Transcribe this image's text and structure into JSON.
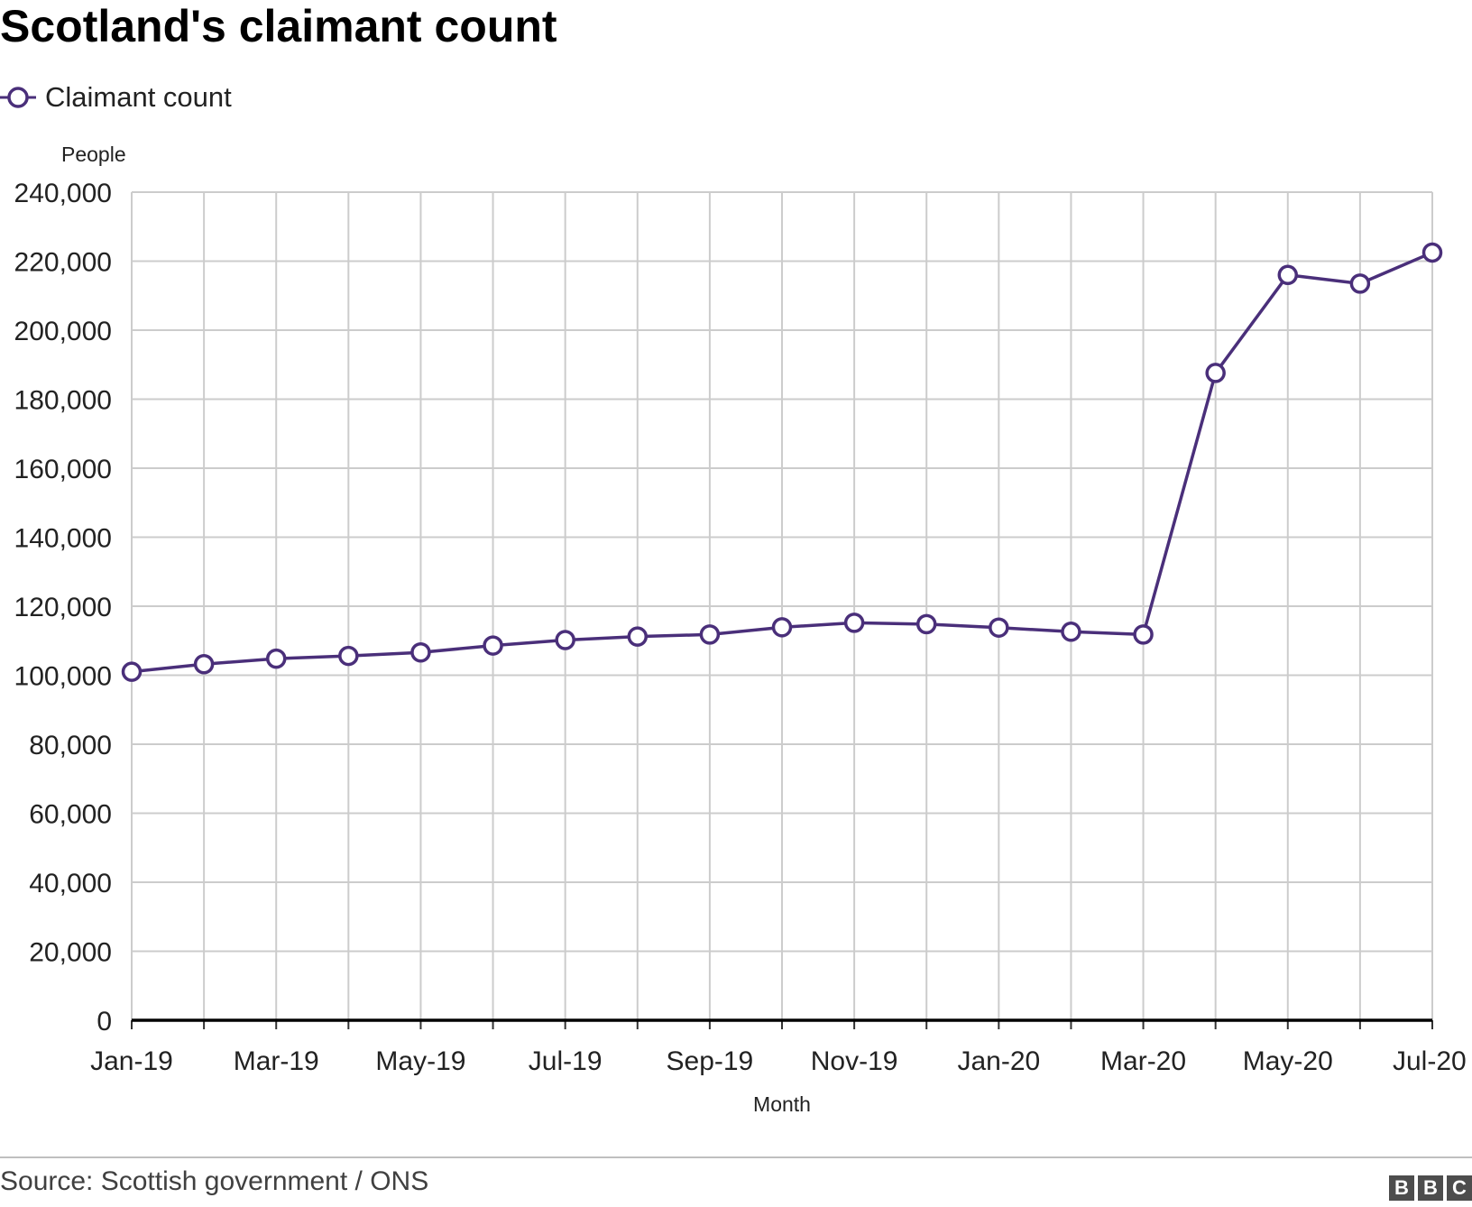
{
  "header": {
    "title": "Scotland's claimant count"
  },
  "legend": {
    "label": "Claimant count",
    "marker_icon": "circle-marker-icon"
  },
  "footer": {
    "source": "Source: Scottish government / ONS",
    "logo_letters": [
      "B",
      "B",
      "C"
    ]
  },
  "colors": {
    "series": "#4a2f7a",
    "grid": "#cccccc",
    "baseline": "#000000"
  },
  "chart_data": {
    "type": "line",
    "ylabel": "People",
    "xlabel": "Month",
    "ylim": [
      0,
      240000
    ],
    "yticks": [
      0,
      20000,
      40000,
      60000,
      80000,
      100000,
      120000,
      140000,
      160000,
      180000,
      200000,
      220000,
      240000
    ],
    "ytick_labels": [
      "0",
      "20,000",
      "40,000",
      "60,000",
      "80,000",
      "100,000",
      "120,000",
      "140,000",
      "160,000",
      "180,000",
      "200,000",
      "220,000",
      "240,000"
    ],
    "x": [
      "Jan-19",
      "Feb-19",
      "Mar-19",
      "Apr-19",
      "May-19",
      "Jun-19",
      "Jul-19",
      "Aug-19",
      "Sep-19",
      "Oct-19",
      "Nov-19",
      "Dec-19",
      "Jan-20",
      "Feb-20",
      "Mar-20",
      "Apr-20",
      "May-20",
      "Jun-20",
      "Jul-20"
    ],
    "xtick_labels": [
      "Jan-19",
      "Mar-19",
      "May-19",
      "Jul-19",
      "Sep-19",
      "Nov-19",
      "Jan-20",
      "Mar-20",
      "May-20",
      "Jul-20"
    ],
    "series": [
      {
        "name": "Claimant count",
        "values": [
          101000,
          103200,
          104800,
          105600,
          106600,
          108600,
          110200,
          111200,
          111800,
          113900,
          115200,
          114800,
          113800,
          112600,
          111800,
          187600,
          216000,
          213500,
          222500
        ]
      }
    ],
    "grid": true,
    "legend_position": "top-left"
  }
}
